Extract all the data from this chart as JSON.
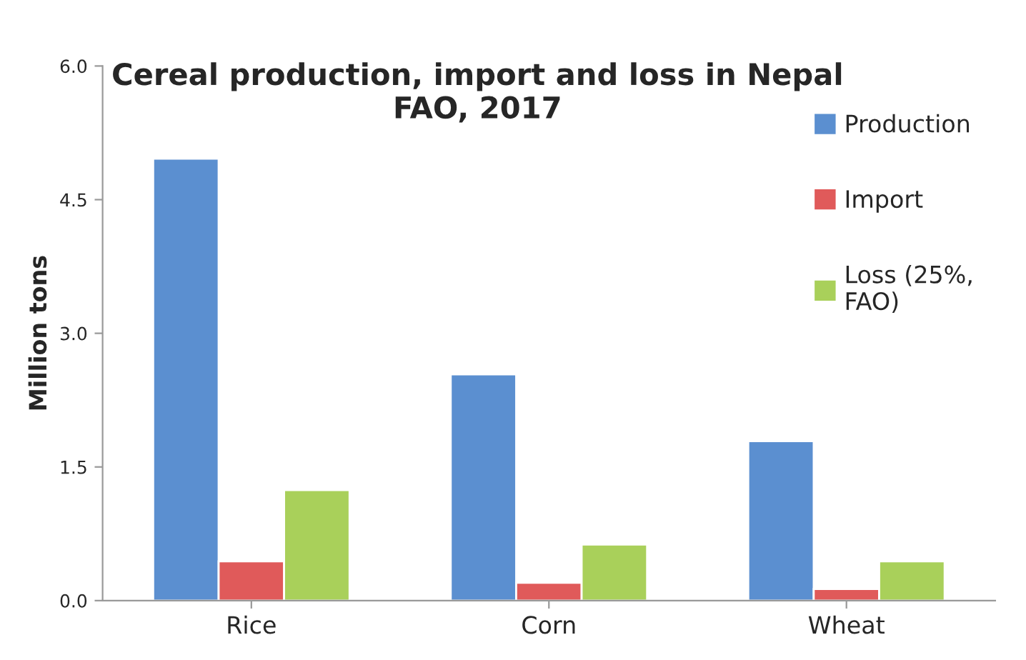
{
  "chart_data": {
    "type": "bar",
    "title": "Cereal production, import and loss in Nepal\nFAO, 2017",
    "ylabel": "Million tons",
    "categories": [
      "Rice",
      "Corn",
      "Wheat"
    ],
    "series": [
      {
        "name": "Production",
        "color": "#5b8fd0",
        "values": [
          4.96,
          2.54,
          1.79
        ]
      },
      {
        "name": "Import",
        "color": "#e05a5a",
        "values": [
          0.44,
          0.2,
          0.13
        ]
      },
      {
        "name": "Loss (25%,\nFAO)",
        "color": "#a9d05a",
        "values": [
          1.24,
          0.63,
          0.44
        ]
      }
    ],
    "ylim": [
      0,
      6.0
    ],
    "yticks": [
      {
        "value": 0,
        "label": "0.0"
      },
      {
        "value": 1.5,
        "label": "1.5"
      },
      {
        "value": 3.0,
        "label": "3.0"
      },
      {
        "value": 4.5,
        "label": "4.5"
      },
      {
        "value": 6.0,
        "label": "6.0"
      }
    ],
    "grid": false,
    "legend": "top right"
  }
}
